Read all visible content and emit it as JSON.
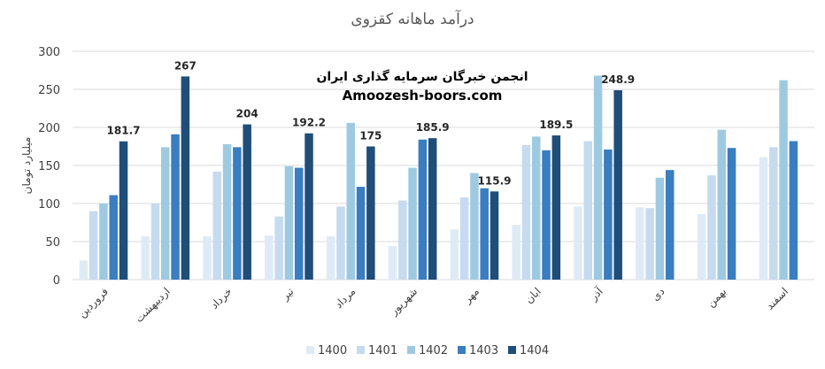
{
  "chart_data": {
    "type": "bar",
    "title": "درآمد ماهانه کقزوی",
    "ylabel": "میلیارد تومان",
    "xlabel": "",
    "ylim": [
      0,
      300
    ],
    "yticks": [
      0,
      50,
      100,
      150,
      200,
      250,
      300
    ],
    "grid": true,
    "legend_position": "bottom",
    "categories": [
      "فروردین",
      "اردیبهشت",
      "خرداد",
      "تیر",
      "مرداد",
      "شهریور",
      "مهر",
      "ابان",
      "آذر",
      "دی",
      "بهمن",
      "اسفند"
    ],
    "series": [
      {
        "name": "1400",
        "color": "#deebf7",
        "values": [
          25,
          57,
          57,
          58,
          57,
          44,
          66,
          72,
          96,
          95,
          86,
          161
        ]
      },
      {
        "name": "1401",
        "color": "#c6dbef",
        "values": [
          90,
          100,
          142,
          83,
          96,
          104,
          108,
          177,
          182,
          94,
          137,
          174
        ]
      },
      {
        "name": "1402",
        "color": "#9ecae1",
        "values": [
          100,
          174,
          178,
          149,
          206,
          147,
          140,
          188,
          268,
          134,
          197,
          262
        ]
      },
      {
        "name": "1403",
        "color": "#3a7dc0",
        "values": [
          111,
          191,
          174,
          147,
          122,
          184,
          120,
          170,
          171,
          144,
          173,
          182
        ]
      },
      {
        "name": "1404",
        "color": "#1f4e79",
        "values": [
          181.7,
          267,
          204,
          192.2,
          175,
          185.9,
          115.9,
          189.5,
          248.9,
          null,
          null,
          null
        ],
        "data_labels": [
          "181.7",
          "267",
          "204",
          "192.2",
          "175",
          "185.9",
          "115.9",
          "189.5",
          "248.9"
        ]
      }
    ]
  },
  "watermark": {
    "line1": "انجمن خبرگان سرمایه گذاری ایران",
    "line2": "Amoozesh-boors.com"
  }
}
